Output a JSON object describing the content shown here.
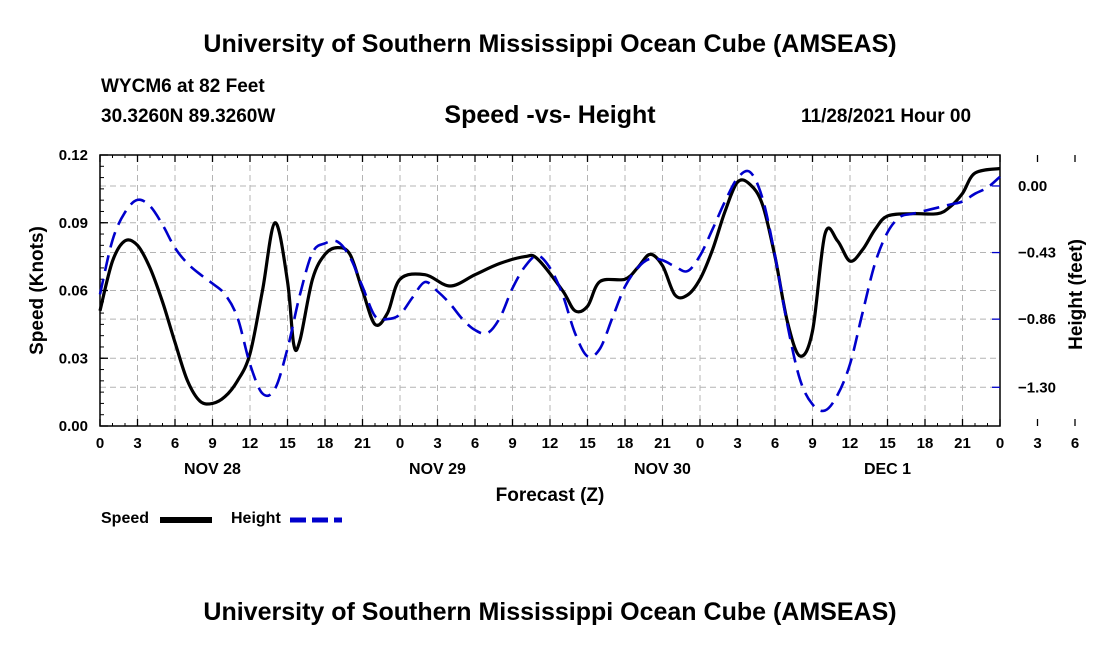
{
  "chart_data": {
    "type": "line",
    "title": "University of Southern Mississippi Ocean Cube (AMSEAS)",
    "station": "WYCM6 at 82 Feet",
    "coords": "30.3260N  89.3260W",
    "subtitle": "Speed -vs- Height",
    "datetime": "11/28/2021 Hour 00",
    "xlabel": "Forecast (Z)",
    "ylabel": "Speed (Knots)",
    "y2label": "Height (feet)",
    "xlim": [
      0,
      72
    ],
    "ylim": [
      0,
      0.12
    ],
    "y2lim": [
      -1.55,
      0.2
    ],
    "y_ticks": [
      "0.00",
      "0.03",
      "0.06",
      "0.09",
      "0.12"
    ],
    "y_tick_values": [
      0,
      0.03,
      0.06,
      0.09,
      0.12
    ],
    "y2_ticks": [
      "0.00",
      "−0.43",
      "−0.86",
      "−1.30"
    ],
    "y2_tick_values": [
      0,
      -0.43,
      -0.86,
      -1.3
    ],
    "x_tick_labels": [
      "0",
      "3",
      "6",
      "9",
      "12",
      "15",
      "18",
      "21",
      "0",
      "3",
      "6",
      "9",
      "12",
      "15",
      "18",
      "21",
      "0",
      "3",
      "6",
      "9",
      "12",
      "15",
      "18",
      "21",
      "0",
      "3",
      "6",
      "9",
      "12",
      "15",
      "18",
      "21",
      "0"
    ],
    "day_labels": [
      {
        "label": "NOV 28",
        "hour": 9
      },
      {
        "label": "NOV 29",
        "hour": 27
      },
      {
        "label": "NOV 30",
        "hour": 45
      },
      {
        "label": "DEC 1",
        "hour": 63
      }
    ],
    "grid": true,
    "series": [
      {
        "name": "Speed",
        "axis": "left",
        "color": "#000000",
        "dash": "solid",
        "points": [
          [
            0,
            0.051
          ],
          [
            1,
            0.073
          ],
          [
            2,
            0.082
          ],
          [
            3,
            0.08
          ],
          [
            4,
            0.07
          ],
          [
            5,
            0.055
          ],
          [
            6,
            0.037
          ],
          [
            7,
            0.02
          ],
          [
            8,
            0.011
          ],
          [
            9,
            0.01
          ],
          [
            10,
            0.013
          ],
          [
            11,
            0.02
          ],
          [
            12,
            0.032
          ],
          [
            13,
            0.06
          ],
          [
            14,
            0.09
          ],
          [
            15,
            0.064
          ],
          [
            15.5,
            0.036
          ],
          [
            16,
            0.038
          ],
          [
            17,
            0.065
          ],
          [
            18,
            0.076
          ],
          [
            19,
            0.079
          ],
          [
            20,
            0.076
          ],
          [
            21,
            0.06
          ],
          [
            22,
            0.045
          ],
          [
            23,
            0.05
          ],
          [
            24,
            0.065
          ],
          [
            26,
            0.067
          ],
          [
            28,
            0.062
          ],
          [
            30,
            0.067
          ],
          [
            32,
            0.072
          ],
          [
            34,
            0.075
          ],
          [
            35,
            0.074
          ],
          [
            37,
            0.06
          ],
          [
            38,
            0.051
          ],
          [
            39,
            0.053
          ],
          [
            40,
            0.064
          ],
          [
            42,
            0.065
          ],
          [
            43,
            0.07
          ],
          [
            44,
            0.076
          ],
          [
            45,
            0.071
          ],
          [
            46,
            0.058
          ],
          [
            47,
            0.058
          ],
          [
            48,
            0.065
          ],
          [
            49,
            0.078
          ],
          [
            50,
            0.095
          ],
          [
            51,
            0.108
          ],
          [
            52,
            0.107
          ],
          [
            53,
            0.098
          ],
          [
            54,
            0.075
          ],
          [
            55,
            0.046
          ],
          [
            56,
            0.031
          ],
          [
            57,
            0.042
          ],
          [
            58,
            0.085
          ],
          [
            59,
            0.082
          ],
          [
            60,
            0.073
          ],
          [
            61,
            0.078
          ],
          [
            62,
            0.087
          ],
          [
            63,
            0.093
          ],
          [
            65,
            0.094
          ],
          [
            67,
            0.094
          ],
          [
            68,
            0.097
          ],
          [
            69,
            0.103
          ],
          [
            70,
            0.112
          ],
          [
            72,
            0.114
          ]
        ]
      },
      {
        "name": "Height",
        "axis": "right",
        "color": "#0000cc",
        "dash": "dashed",
        "points": [
          [
            0,
            -0.7
          ],
          [
            1,
            -0.35
          ],
          [
            2,
            -0.17
          ],
          [
            3,
            -0.09
          ],
          [
            4,
            -0.13
          ],
          [
            5,
            -0.25
          ],
          [
            6,
            -0.4
          ],
          [
            7,
            -0.5
          ],
          [
            8,
            -0.57
          ],
          [
            9,
            -0.63
          ],
          [
            10,
            -0.7
          ],
          [
            11,
            -0.85
          ],
          [
            12,
            -1.15
          ],
          [
            13,
            -1.34
          ],
          [
            14,
            -1.31
          ],
          [
            15,
            -1.05
          ],
          [
            16,
            -0.7
          ],
          [
            17,
            -0.43
          ],
          [
            18,
            -0.37
          ],
          [
            19,
            -0.36
          ],
          [
            20,
            -0.46
          ],
          [
            21,
            -0.65
          ],
          [
            22,
            -0.84
          ],
          [
            23,
            -0.86
          ],
          [
            24,
            -0.83
          ],
          [
            25,
            -0.72
          ],
          [
            26,
            -0.62
          ],
          [
            27,
            -0.68
          ],
          [
            28,
            -0.76
          ],
          [
            29,
            -0.86
          ],
          [
            30,
            -0.93
          ],
          [
            31,
            -0.95
          ],
          [
            32,
            -0.85
          ],
          [
            33,
            -0.66
          ],
          [
            34,
            -0.52
          ],
          [
            35,
            -0.45
          ],
          [
            36,
            -0.53
          ],
          [
            37,
            -0.7
          ],
          [
            38,
            -0.95
          ],
          [
            39,
            -1.1
          ],
          [
            40,
            -1.05
          ],
          [
            41,
            -0.85
          ],
          [
            42,
            -0.65
          ],
          [
            43,
            -0.53
          ],
          [
            44,
            -0.47
          ],
          [
            45,
            -0.48
          ],
          [
            46,
            -0.52
          ],
          [
            47,
            -0.55
          ],
          [
            48,
            -0.45
          ],
          [
            49,
            -0.28
          ],
          [
            50,
            -0.1
          ],
          [
            51,
            0.05
          ],
          [
            52,
            0.09
          ],
          [
            53,
            -0.08
          ],
          [
            54,
            -0.45
          ],
          [
            55,
            -0.9
          ],
          [
            56,
            -1.25
          ],
          [
            57,
            -1.41
          ],
          [
            58,
            -1.45
          ],
          [
            59,
            -1.35
          ],
          [
            60,
            -1.15
          ],
          [
            61,
            -0.82
          ],
          [
            62,
            -0.5
          ],
          [
            63,
            -0.3
          ],
          [
            64,
            -0.2
          ],
          [
            65,
            -0.18
          ],
          [
            66,
            -0.16
          ],
          [
            67,
            -0.14
          ],
          [
            68,
            -0.12
          ],
          [
            69,
            -0.1
          ],
          [
            70,
            -0.05
          ],
          [
            71,
            -0.01
          ],
          [
            72,
            0.06
          ]
        ]
      }
    ]
  }
}
